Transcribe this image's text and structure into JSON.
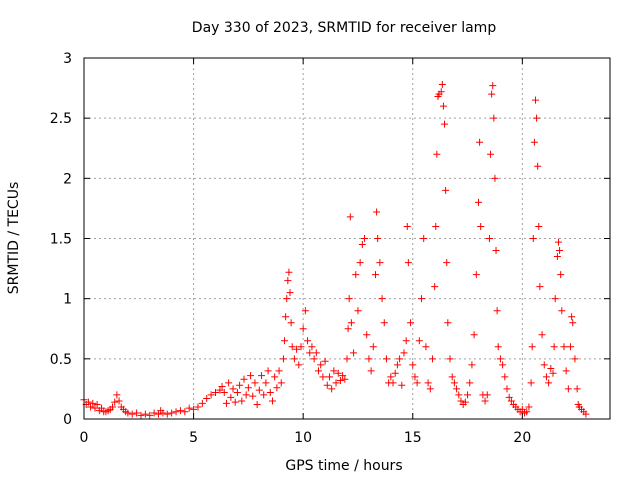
{
  "chart_data": {
    "type": "scatter",
    "title": "Day 330 of 2023, SRMTID for receiver lamp",
    "xlabel": "GPS time / hours",
    "ylabel": "SRMTID / TECUs",
    "xlim": [
      0,
      24
    ],
    "ylim": [
      0,
      3
    ],
    "xticks": [
      0,
      5,
      10,
      15,
      20
    ],
    "xtick_labels": [
      "0",
      "5",
      "10",
      "15",
      "20"
    ],
    "yticks": [
      0,
      0.5,
      1,
      1.5,
      2,
      2.5,
      3
    ],
    "ytick_labels": [
      "0",
      "0.5",
      "1",
      "1.5",
      "2",
      "2.5",
      "3"
    ],
    "grid": true,
    "marker": "+",
    "color": "#ff0000",
    "series": [
      {
        "name": "lamp",
        "points": [
          [
            0.0,
            0.16
          ],
          [
            0.1,
            0.12
          ],
          [
            0.2,
            0.14
          ],
          [
            0.3,
            0.1
          ],
          [
            0.4,
            0.13
          ],
          [
            0.5,
            0.09
          ],
          [
            0.6,
            0.12
          ],
          [
            0.7,
            0.07
          ],
          [
            0.8,
            0.09
          ],
          [
            0.9,
            0.06
          ],
          [
            1.0,
            0.06
          ],
          [
            1.1,
            0.07
          ],
          [
            1.2,
            0.08
          ],
          [
            1.3,
            0.1
          ],
          [
            1.4,
            0.14
          ],
          [
            1.5,
            0.2
          ],
          [
            1.6,
            0.15
          ],
          [
            1.7,
            0.1
          ],
          [
            1.8,
            0.08
          ],
          [
            1.9,
            0.06
          ],
          [
            2.0,
            0.05
          ],
          [
            2.2,
            0.04
          ],
          [
            2.4,
            0.05
          ],
          [
            2.6,
            0.03
          ],
          [
            2.8,
            0.04
          ],
          [
            3.0,
            0.03
          ],
          [
            3.2,
            0.05
          ],
          [
            3.4,
            0.04
          ],
          [
            3.5,
            0.07
          ],
          [
            3.6,
            0.05
          ],
          [
            3.8,
            0.04
          ],
          [
            4.0,
            0.05
          ],
          [
            4.2,
            0.06
          ],
          [
            4.4,
            0.07
          ],
          [
            4.6,
            0.06
          ],
          [
            4.8,
            0.09
          ],
          [
            5.0,
            0.08
          ],
          [
            5.2,
            0.1
          ],
          [
            5.4,
            0.13
          ],
          [
            5.6,
            0.17
          ],
          [
            5.8,
            0.2
          ],
          [
            6.0,
            0.22
          ],
          [
            6.2,
            0.24
          ],
          [
            6.3,
            0.27
          ],
          [
            6.4,
            0.22
          ],
          [
            6.5,
            0.13
          ],
          [
            6.6,
            0.3
          ],
          [
            6.7,
            0.18
          ],
          [
            6.8,
            0.25
          ],
          [
            6.9,
            0.14
          ],
          [
            7.0,
            0.22
          ],
          [
            7.1,
            0.28
          ],
          [
            7.2,
            0.15
          ],
          [
            7.3,
            0.33
          ],
          [
            7.4,
            0.2
          ],
          [
            7.5,
            0.26
          ],
          [
            7.6,
            0.36
          ],
          [
            7.7,
            0.19
          ],
          [
            7.8,
            0.3
          ],
          [
            7.9,
            0.12
          ],
          [
            8.0,
            0.24
          ],
          [
            8.1,
            0.36
          ],
          [
            8.2,
            0.2
          ],
          [
            8.3,
            0.3
          ],
          [
            8.4,
            0.4
          ],
          [
            8.5,
            0.22
          ],
          [
            8.6,
            0.15
          ],
          [
            8.7,
            0.35
          ],
          [
            8.8,
            0.26
          ],
          [
            8.9,
            0.4
          ],
          [
            9.0,
            0.3
          ],
          [
            9.1,
            0.5
          ],
          [
            9.15,
            0.65
          ],
          [
            9.2,
            0.85
          ],
          [
            9.25,
            1.0
          ],
          [
            9.3,
            1.15
          ],
          [
            9.35,
            1.22
          ],
          [
            9.4,
            1.05
          ],
          [
            9.45,
            0.8
          ],
          [
            9.5,
            0.6
          ],
          [
            9.6,
            0.5
          ],
          [
            9.7,
            0.58
          ],
          [
            9.8,
            0.45
          ],
          [
            9.9,
            0.6
          ],
          [
            10.0,
            0.75
          ],
          [
            10.1,
            0.9
          ],
          [
            10.2,
            0.65
          ],
          [
            10.3,
            0.55
          ],
          [
            10.4,
            0.6
          ],
          [
            10.5,
            0.5
          ],
          [
            10.6,
            0.55
          ],
          [
            10.7,
            0.4
          ],
          [
            10.8,
            0.45
          ],
          [
            10.9,
            0.35
          ],
          [
            11.0,
            0.48
          ],
          [
            11.1,
            0.28
          ],
          [
            11.2,
            0.35
          ],
          [
            11.3,
            0.25
          ],
          [
            11.4,
            0.4
          ],
          [
            11.5,
            0.3
          ],
          [
            11.6,
            0.38
          ],
          [
            11.7,
            0.32
          ],
          [
            11.8,
            0.36
          ],
          [
            11.9,
            0.33
          ],
          [
            12.0,
            0.5
          ],
          [
            12.05,
            0.75
          ],
          [
            12.1,
            1.0
          ],
          [
            12.15,
            1.68
          ],
          [
            12.2,
            0.8
          ],
          [
            12.3,
            0.55
          ],
          [
            12.4,
            1.2
          ],
          [
            12.5,
            0.9
          ],
          [
            12.6,
            1.3
          ],
          [
            12.7,
            1.45
          ],
          [
            12.8,
            1.5
          ],
          [
            12.9,
            0.7
          ],
          [
            13.0,
            0.5
          ],
          [
            13.1,
            0.4
          ],
          [
            13.2,
            0.6
          ],
          [
            13.3,
            1.2
          ],
          [
            13.35,
            1.72
          ],
          [
            13.4,
            1.5
          ],
          [
            13.5,
            1.3
          ],
          [
            13.6,
            1.0
          ],
          [
            13.7,
            0.8
          ],
          [
            13.8,
            0.5
          ],
          [
            13.9,
            0.3
          ],
          [
            14.0,
            0.35
          ],
          [
            14.1,
            0.3
          ],
          [
            14.2,
            0.38
          ],
          [
            14.3,
            0.45
          ],
          [
            14.4,
            0.5
          ],
          [
            14.5,
            0.28
          ],
          [
            14.6,
            0.55
          ],
          [
            14.7,
            0.65
          ],
          [
            14.75,
            1.6
          ],
          [
            14.8,
            1.3
          ],
          [
            14.9,
            0.8
          ],
          [
            15.0,
            0.45
          ],
          [
            15.1,
            0.35
          ],
          [
            15.2,
            0.3
          ],
          [
            15.3,
            0.65
          ],
          [
            15.4,
            1.0
          ],
          [
            15.5,
            1.5
          ],
          [
            15.6,
            0.6
          ],
          [
            15.7,
            0.3
          ],
          [
            15.8,
            0.25
          ],
          [
            15.9,
            0.5
          ],
          [
            16.0,
            1.1
          ],
          [
            16.05,
            1.6
          ],
          [
            16.1,
            2.2
          ],
          [
            16.15,
            2.68
          ],
          [
            16.2,
            2.7
          ],
          [
            16.3,
            2.72
          ],
          [
            16.35,
            2.78
          ],
          [
            16.4,
            2.6
          ],
          [
            16.45,
            2.45
          ],
          [
            16.5,
            1.9
          ],
          [
            16.55,
            1.3
          ],
          [
            16.6,
            0.8
          ],
          [
            16.7,
            0.5
          ],
          [
            16.8,
            0.35
          ],
          [
            16.9,
            0.3
          ],
          [
            17.0,
            0.25
          ],
          [
            17.1,
            0.2
          ],
          [
            17.2,
            0.15
          ],
          [
            17.3,
            0.12
          ],
          [
            17.4,
            0.14
          ],
          [
            17.5,
            0.2
          ],
          [
            17.6,
            0.3
          ],
          [
            17.7,
            0.45
          ],
          [
            17.8,
            0.7
          ],
          [
            17.9,
            1.2
          ],
          [
            18.0,
            1.8
          ],
          [
            18.05,
            2.3
          ],
          [
            18.1,
            1.6
          ],
          [
            18.2,
            0.2
          ],
          [
            18.3,
            0.15
          ],
          [
            18.4,
            0.2
          ],
          [
            18.5,
            1.5
          ],
          [
            18.55,
            2.2
          ],
          [
            18.6,
            2.7
          ],
          [
            18.65,
            2.77
          ],
          [
            18.7,
            2.5
          ],
          [
            18.75,
            2.0
          ],
          [
            18.8,
            1.4
          ],
          [
            18.85,
            0.9
          ],
          [
            18.9,
            0.6
          ],
          [
            19.0,
            0.5
          ],
          [
            19.1,
            0.45
          ],
          [
            19.2,
            0.35
          ],
          [
            19.3,
            0.25
          ],
          [
            19.4,
            0.18
          ],
          [
            19.5,
            0.15
          ],
          [
            19.6,
            0.12
          ],
          [
            19.7,
            0.1
          ],
          [
            19.8,
            0.08
          ],
          [
            19.9,
            0.06
          ],
          [
            20.0,
            0.08
          ],
          [
            20.1,
            0.05
          ],
          [
            20.2,
            0.06
          ],
          [
            20.3,
            0.1
          ],
          [
            20.4,
            0.3
          ],
          [
            20.45,
            0.6
          ],
          [
            20.5,
            1.5
          ],
          [
            20.55,
            2.3
          ],
          [
            20.6,
            2.65
          ],
          [
            20.65,
            2.5
          ],
          [
            20.7,
            2.1
          ],
          [
            20.75,
            1.6
          ],
          [
            20.8,
            1.1
          ],
          [
            20.9,
            0.7
          ],
          [
            21.0,
            0.45
          ],
          [
            21.1,
            0.35
          ],
          [
            21.2,
            0.3
          ],
          [
            21.3,
            0.42
          ],
          [
            21.4,
            0.38
          ],
          [
            21.45,
            0.6
          ],
          [
            21.5,
            1.0
          ],
          [
            21.6,
            1.35
          ],
          [
            21.65,
            1.47
          ],
          [
            21.7,
            1.4
          ],
          [
            21.75,
            1.2
          ],
          [
            21.8,
            0.9
          ],
          [
            21.9,
            0.6
          ],
          [
            22.0,
            0.4
          ],
          [
            22.1,
            0.25
          ],
          [
            22.2,
            0.6
          ],
          [
            22.25,
            0.85
          ],
          [
            22.3,
            0.8
          ],
          [
            22.4,
            0.5
          ],
          [
            22.5,
            0.25
          ],
          [
            22.55,
            0.12
          ],
          [
            22.6,
            0.1
          ],
          [
            22.7,
            0.08
          ],
          [
            22.8,
            0.06
          ],
          [
            22.9,
            0.04
          ]
        ]
      }
    ]
  }
}
